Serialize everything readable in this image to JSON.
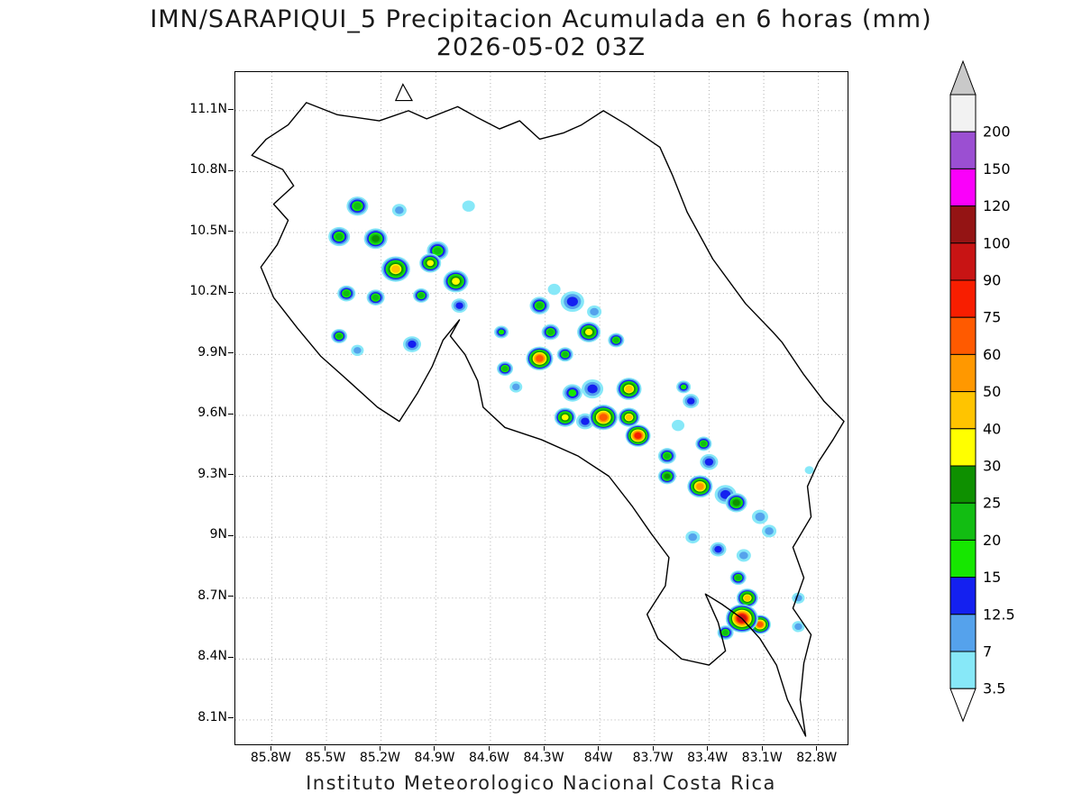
{
  "title": {
    "line1": "IMN/SARAPIQUI_5 Precipitacion Acumulada en 6 horas (mm)",
    "line2": "2026-05-02 03Z"
  },
  "caption": "Instituto Meteorologico Nacional Costa Rica",
  "chart_data": {
    "type": "heatmap",
    "title": "IMN/SARAPIQUI_5 Precipitacion Acumulada en 6 horas (mm)",
    "subtitle": "2026-05-02 03Z",
    "variable": "6-hour accumulated precipitation (mm)",
    "region": "Costa Rica",
    "grid": "dotted",
    "x_axis": {
      "labels": [
        "85.8W",
        "85.5W",
        "85.2W",
        "84.9W",
        "84.6W",
        "84.3W",
        "84W",
        "83.7W",
        "83.4W",
        "83.1W",
        "82.8W"
      ],
      "values": [
        85.8,
        85.5,
        85.2,
        84.9,
        84.6,
        84.3,
        84.0,
        83.7,
        83.4,
        83.1,
        82.8
      ]
    },
    "y_axis": {
      "labels": [
        "11.1N",
        "10.8N",
        "10.5N",
        "10.2N",
        "9.9N",
        "9.6N",
        "9.3N",
        "9N",
        "8.7N",
        "8.4N",
        "8.1N"
      ],
      "values": [
        11.1,
        10.8,
        10.5,
        10.2,
        9.9,
        9.6,
        9.3,
        9.0,
        8.7,
        8.4,
        8.1
      ]
    },
    "lon_range_degW": [
      86.0,
      82.64
    ],
    "lat_range_degN": [
      7.98,
      11.29
    ],
    "colorbar": {
      "position": "right",
      "units": "mm",
      "levels_mm": [
        3.5,
        7,
        12.5,
        15,
        20,
        25,
        30,
        40,
        50,
        60,
        75,
        90,
        100,
        120,
        150,
        200
      ],
      "labels_top_to_bottom": [
        "200",
        "150",
        "120",
        "100",
        "90",
        "75",
        "60",
        "50",
        "40",
        "30",
        "25",
        "20",
        "15",
        "12.5",
        "7",
        "3.5"
      ],
      "band_colors_ascending": [
        "#87E8F8",
        "#55A2EC",
        "#1420F0",
        "#16E700",
        "#12BD12",
        "#0E9000",
        "#FFFF00",
        "#FFC400",
        "#FF9800",
        "#FF5A00",
        "#F81E00",
        "#C81414",
        "#941414",
        "#FA00FA",
        "#9B4FD2"
      ],
      "above_max_band_color": "#F2F2F2",
      "top_arrow_color": "#C9C9C9",
      "bottom_arrow_color": "#FFFFFF"
    },
    "map_outline_lonlat": [
      [
        85.71,
        11.03
      ],
      [
        85.61,
        11.14
      ],
      [
        85.44,
        11.08
      ],
      [
        85.21,
        11.05
      ],
      [
        85.05,
        11.1
      ],
      [
        84.95,
        11.06
      ],
      [
        84.78,
        11.12
      ],
      [
        84.68,
        11.07
      ],
      [
        84.55,
        11.01
      ],
      [
        84.44,
        11.05
      ],
      [
        84.33,
        10.96
      ],
      [
        84.2,
        10.99
      ],
      [
        84.1,
        11.03
      ],
      [
        83.98,
        11.1
      ],
      [
        83.85,
        11.03
      ],
      [
        83.67,
        10.92
      ],
      [
        83.6,
        10.78
      ],
      [
        83.52,
        10.6
      ],
      [
        83.38,
        10.37
      ],
      [
        83.2,
        10.15
      ],
      [
        83.05,
        10.01
      ],
      [
        83.0,
        9.96
      ],
      [
        82.88,
        9.8
      ],
      [
        82.77,
        9.67
      ],
      [
        82.66,
        9.57
      ],
      [
        82.72,
        9.48
      ],
      [
        82.8,
        9.37
      ],
      [
        82.86,
        9.25
      ],
      [
        82.84,
        9.1
      ],
      [
        82.94,
        8.95
      ],
      [
        82.88,
        8.8
      ],
      [
        82.94,
        8.65
      ],
      [
        82.84,
        8.52
      ],
      [
        82.88,
        8.38
      ],
      [
        82.9,
        8.2
      ],
      [
        82.87,
        8.02
      ],
      [
        82.97,
        8.2
      ],
      [
        83.03,
        8.37
      ],
      [
        83.12,
        8.5
      ],
      [
        83.22,
        8.6
      ],
      [
        83.33,
        8.67
      ],
      [
        83.42,
        8.72
      ],
      [
        83.35,
        8.58
      ],
      [
        83.31,
        8.44
      ],
      [
        83.4,
        8.37
      ],
      [
        83.55,
        8.4
      ],
      [
        83.68,
        8.5
      ],
      [
        83.74,
        8.62
      ],
      [
        83.64,
        8.76
      ],
      [
        83.62,
        8.9
      ],
      [
        83.72,
        9.02
      ],
      [
        83.82,
        9.15
      ],
      [
        83.95,
        9.3
      ],
      [
        84.12,
        9.4
      ],
      [
        84.32,
        9.48
      ],
      [
        84.52,
        9.54
      ],
      [
        84.64,
        9.64
      ],
      [
        84.67,
        9.77
      ],
      [
        84.74,
        9.9
      ],
      [
        84.82,
        9.99
      ],
      [
        84.77,
        10.07
      ],
      [
        84.86,
        9.97
      ],
      [
        84.92,
        9.84
      ],
      [
        85.0,
        9.71
      ],
      [
        85.1,
        9.57
      ],
      [
        85.22,
        9.64
      ],
      [
        85.38,
        9.77
      ],
      [
        85.53,
        9.89
      ],
      [
        85.66,
        10.03
      ],
      [
        85.79,
        10.18
      ],
      [
        85.86,
        10.33
      ],
      [
        85.77,
        10.44
      ],
      [
        85.71,
        10.56
      ],
      [
        85.79,
        10.64
      ],
      [
        85.68,
        10.73
      ],
      [
        85.74,
        10.81
      ],
      [
        85.91,
        10.88
      ],
      [
        85.83,
        10.96
      ]
    ],
    "lake_outline_lonlat": [
      [
        85.08,
        11.23
      ],
      [
        85.03,
        11.15
      ],
      [
        85.12,
        11.15
      ]
    ],
    "precip_cells_fields": [
      "lon_degW",
      "lat_degN",
      "radius_px",
      "peak_mm"
    ],
    "precip_cells": [
      [
        85.33,
        10.63,
        12,
        20
      ],
      [
        85.1,
        10.61,
        8,
        7
      ],
      [
        85.43,
        10.48,
        12,
        20
      ],
      [
        85.23,
        10.47,
        13,
        25
      ],
      [
        84.89,
        10.41,
        12,
        20
      ],
      [
        85.12,
        10.32,
        16,
        40
      ],
      [
        84.93,
        10.35,
        12,
        30
      ],
      [
        84.79,
        10.26,
        14,
        30
      ],
      [
        85.39,
        10.2,
        10,
        20
      ],
      [
        85.23,
        10.18,
        10,
        20
      ],
      [
        84.98,
        10.19,
        9,
        20
      ],
      [
        84.77,
        10.14,
        9,
        12.5
      ],
      [
        85.43,
        9.99,
        9,
        20
      ],
      [
        85.33,
        9.92,
        7,
        7
      ],
      [
        85.03,
        9.95,
        10,
        12.5
      ],
      [
        84.33,
        10.14,
        11,
        20
      ],
      [
        84.15,
        10.16,
        13,
        12.5
      ],
      [
        84.03,
        10.11,
        8,
        7
      ],
      [
        84.27,
        10.01,
        10,
        20
      ],
      [
        84.06,
        10.01,
        13,
        30
      ],
      [
        83.91,
        9.97,
        9,
        20
      ],
      [
        84.54,
        10.01,
        8,
        15
      ],
      [
        84.52,
        9.83,
        9,
        20
      ],
      [
        84.33,
        9.88,
        15,
        60
      ],
      [
        84.19,
        9.9,
        9,
        20
      ],
      [
        84.46,
        9.74,
        7,
        7
      ],
      [
        84.15,
        9.71,
        11,
        15
      ],
      [
        84.04,
        9.73,
        12,
        12.5
      ],
      [
        83.84,
        9.73,
        14,
        40
      ],
      [
        84.19,
        9.59,
        12,
        30
      ],
      [
        84.08,
        9.57,
        10,
        12.5
      ],
      [
        83.98,
        9.59,
        16,
        60
      ],
      [
        83.84,
        9.59,
        12,
        40
      ],
      [
        83.79,
        9.5,
        14,
        75
      ],
      [
        83.54,
        9.74,
        8,
        15
      ],
      [
        83.5,
        9.67,
        9,
        12.5
      ],
      [
        83.63,
        9.4,
        10,
        20
      ],
      [
        83.63,
        9.3,
        10,
        25
      ],
      [
        83.43,
        9.46,
        9,
        20
      ],
      [
        83.4,
        9.37,
        10,
        12.5
      ],
      [
        83.45,
        9.25,
        14,
        50
      ],
      [
        83.31,
        9.21,
        12,
        12.5
      ],
      [
        83.25,
        9.17,
        12,
        25
      ],
      [
        83.12,
        9.1,
        9,
        7
      ],
      [
        83.07,
        9.03,
        8,
        7
      ],
      [
        83.49,
        9.0,
        8,
        7
      ],
      [
        83.35,
        8.94,
        9,
        12.5
      ],
      [
        83.21,
        8.91,
        8,
        7
      ],
      [
        83.24,
        8.8,
        9,
        20
      ],
      [
        83.19,
        8.7,
        12,
        40
      ],
      [
        83.22,
        8.6,
        18,
        90
      ],
      [
        83.12,
        8.57,
        12,
        60
      ],
      [
        83.31,
        8.53,
        9,
        20
      ],
      [
        82.91,
        8.7,
        7,
        7
      ],
      [
        82.91,
        8.56,
        7,
        7
      ],
      [
        84.72,
        10.63,
        7,
        3.5
      ],
      [
        84.25,
        10.22,
        7,
        3.5
      ],
      [
        83.57,
        9.55,
        7,
        3.5
      ],
      [
        82.85,
        9.33,
        5,
        3.5
      ]
    ]
  }
}
